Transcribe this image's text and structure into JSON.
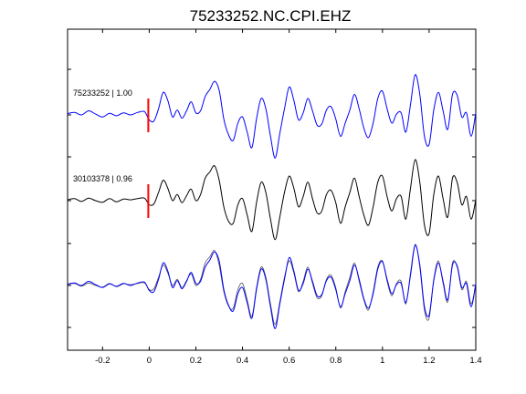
{
  "chart_data": {
    "type": "line",
    "title": "75233252.NC.CPI.EHZ",
    "xlabel": "",
    "ylabel": "",
    "xlim": [
      -0.35,
      1.4
    ],
    "xticks": [
      -0.2,
      0,
      0.2,
      0.4,
      0.6,
      0.8,
      1,
      1.2,
      1.4
    ],
    "xtick_labels": [
      "-0.2",
      "0",
      "0.2",
      "0.4",
      "0.6",
      "0.8",
      "1",
      "1.2",
      "1.4"
    ],
    "grid": false,
    "legend": "none",
    "pick_time": 0,
    "panels": [
      {
        "label": "75233252 | 1.00",
        "traces": [
          {
            "id": "75233252",
            "color": "#0000ff",
            "x": [
              -0.35,
              -0.32,
              -0.29,
              -0.26,
              -0.23,
              -0.2,
              -0.17,
              -0.14,
              -0.11,
              -0.08,
              -0.05,
              -0.02,
              0.0,
              0.02,
              0.04,
              0.06,
              0.08,
              0.1,
              0.12,
              0.14,
              0.16,
              0.18,
              0.2,
              0.22,
              0.24,
              0.26,
              0.28,
              0.3,
              0.32,
              0.34,
              0.36,
              0.38,
              0.4,
              0.42,
              0.44,
              0.46,
              0.48,
              0.5,
              0.52,
              0.54,
              0.56,
              0.58,
              0.6,
              0.62,
              0.64,
              0.66,
              0.68,
              0.7,
              0.72,
              0.74,
              0.76,
              0.78,
              0.8,
              0.82,
              0.84,
              0.86,
              0.88,
              0.9,
              0.92,
              0.94,
              0.96,
              0.98,
              1.0,
              1.02,
              1.04,
              1.06,
              1.08,
              1.1,
              1.12,
              1.14,
              1.16,
              1.18,
              1.2,
              1.22,
              1.24,
              1.26,
              1.28,
              1.3,
              1.32,
              1.34,
              1.36,
              1.38,
              1.4
            ],
            "y": [
              0.03,
              0.06,
              0.0,
              0.1,
              0.02,
              -0.05,
              0.04,
              -0.02,
              0.05,
              0.0,
              0.06,
              0.08,
              -0.12,
              -0.15,
              0.15,
              0.55,
              0.35,
              -0.05,
              0.12,
              -0.08,
              0.1,
              0.32,
              0.05,
              0.1,
              0.45,
              0.62,
              0.82,
              0.6,
              -0.1,
              -0.48,
              -0.62,
              -0.2,
              -0.05,
              -0.42,
              -0.8,
              -0.1,
              0.4,
              0.15,
              -0.52,
              -1.05,
              -0.45,
              0.15,
              0.68,
              0.35,
              -0.12,
              0.05,
              0.4,
              0.1,
              -0.25,
              -0.22,
              0.12,
              0.2,
              -0.1,
              -0.52,
              -0.2,
              0.12,
              0.5,
              0.15,
              -0.32,
              -0.55,
              -0.2,
              0.4,
              0.58,
              0.15,
              -0.2,
              0.02,
              0.05,
              -0.42,
              0.25,
              0.98,
              0.5,
              -0.52,
              -0.72,
              0.12,
              0.55,
              0.1,
              -0.35,
              0.5,
              0.48,
              -0.05,
              0.05,
              -0.52,
              0.05
            ]
          }
        ]
      },
      {
        "label": "30103378 | 0.96",
        "traces": [
          {
            "id": "30103378",
            "color": "#000000",
            "x": [
              -0.35,
              -0.32,
              -0.29,
              -0.26,
              -0.23,
              -0.2,
              -0.17,
              -0.14,
              -0.11,
              -0.08,
              -0.05,
              -0.02,
              0.0,
              0.02,
              0.04,
              0.06,
              0.08,
              0.1,
              0.12,
              0.14,
              0.16,
              0.18,
              0.2,
              0.22,
              0.24,
              0.26,
              0.28,
              0.3,
              0.32,
              0.34,
              0.36,
              0.38,
              0.4,
              0.42,
              0.44,
              0.46,
              0.48,
              0.5,
              0.52,
              0.54,
              0.56,
              0.58,
              0.6,
              0.62,
              0.64,
              0.66,
              0.68,
              0.7,
              0.72,
              0.74,
              0.76,
              0.78,
              0.8,
              0.82,
              0.84,
              0.86,
              0.88,
              0.9,
              0.92,
              0.94,
              0.96,
              0.98,
              1.0,
              1.02,
              1.04,
              1.06,
              1.08,
              1.1,
              1.12,
              1.14,
              1.16,
              1.18,
              1.2,
              1.22,
              1.24,
              1.26,
              1.28,
              1.3,
              1.32,
              1.34,
              1.36,
              1.38,
              1.4
            ],
            "y": [
              0.02,
              0.05,
              -0.02,
              0.06,
              0.0,
              -0.04,
              0.05,
              -0.03,
              0.04,
              0.02,
              0.05,
              0.06,
              -0.1,
              -0.08,
              0.2,
              0.5,
              0.3,
              0.0,
              0.15,
              -0.05,
              0.12,
              0.28,
              0.0,
              0.15,
              0.55,
              0.7,
              0.85,
              0.5,
              -0.15,
              -0.5,
              -0.55,
              -0.1,
              0.05,
              -0.35,
              -0.75,
              -0.05,
              0.45,
              0.2,
              -0.45,
              -0.95,
              -0.4,
              0.2,
              0.6,
              0.3,
              -0.15,
              0.1,
              0.45,
              0.05,
              -0.3,
              -0.25,
              0.15,
              0.25,
              -0.05,
              -0.55,
              -0.15,
              0.2,
              0.55,
              0.1,
              -0.35,
              -0.6,
              -0.15,
              0.45,
              0.6,
              0.1,
              -0.25,
              0.05,
              0.1,
              -0.45,
              0.3,
              1.0,
              0.45,
              -0.6,
              -0.8,
              0.15,
              0.6,
              0.05,
              -0.4,
              0.55,
              0.45,
              -0.1,
              0.1,
              -0.45,
              0.02
            ]
          }
        ]
      },
      {
        "label": "",
        "traces": [
          {
            "id": "75233252",
            "color": "#0000ff",
            "x": [
              -0.35,
              -0.32,
              -0.29,
              -0.26,
              -0.23,
              -0.2,
              -0.17,
              -0.14,
              -0.11,
              -0.08,
              -0.05,
              -0.02,
              0.0,
              0.02,
              0.04,
              0.06,
              0.08,
              0.1,
              0.12,
              0.14,
              0.16,
              0.18,
              0.2,
              0.22,
              0.24,
              0.26,
              0.28,
              0.3,
              0.32,
              0.34,
              0.36,
              0.38,
              0.4,
              0.42,
              0.44,
              0.46,
              0.48,
              0.5,
              0.52,
              0.54,
              0.56,
              0.58,
              0.6,
              0.62,
              0.64,
              0.66,
              0.68,
              0.7,
              0.72,
              0.74,
              0.76,
              0.78,
              0.8,
              0.82,
              0.84,
              0.86,
              0.88,
              0.9,
              0.92,
              0.94,
              0.96,
              0.98,
              1.0,
              1.02,
              1.04,
              1.06,
              1.08,
              1.1,
              1.12,
              1.14,
              1.16,
              1.18,
              1.2,
              1.22,
              1.24,
              1.26,
              1.28,
              1.3,
              1.32,
              1.34,
              1.36,
              1.38,
              1.4
            ],
            "y": [
              0.03,
              0.06,
              0.0,
              0.1,
              0.02,
              -0.05,
              0.04,
              -0.02,
              0.05,
              0.0,
              0.06,
              0.08,
              -0.12,
              -0.15,
              0.15,
              0.55,
              0.35,
              -0.05,
              0.12,
              -0.08,
              0.1,
              0.32,
              0.05,
              0.1,
              0.45,
              0.62,
              0.82,
              0.6,
              -0.1,
              -0.48,
              -0.62,
              -0.2,
              -0.05,
              -0.42,
              -0.8,
              -0.1,
              0.4,
              0.15,
              -0.52,
              -1.05,
              -0.45,
              0.15,
              0.68,
              0.35,
              -0.12,
              0.05,
              0.4,
              0.1,
              -0.25,
              -0.22,
              0.12,
              0.2,
              -0.1,
              -0.52,
              -0.2,
              0.12,
              0.5,
              0.15,
              -0.32,
              -0.55,
              -0.2,
              0.4,
              0.58,
              0.15,
              -0.2,
              0.02,
              0.05,
              -0.42,
              0.25,
              0.98,
              0.5,
              -0.52,
              -0.72,
              0.12,
              0.55,
              0.1,
              -0.35,
              0.5,
              0.48,
              -0.05,
              0.05,
              -0.52,
              0.05
            ]
          },
          {
            "id": "30103378",
            "color": "#555555",
            "x": [
              -0.35,
              -0.32,
              -0.29,
              -0.26,
              -0.23,
              -0.2,
              -0.17,
              -0.14,
              -0.11,
              -0.08,
              -0.05,
              -0.02,
              0.0,
              0.02,
              0.04,
              0.06,
              0.08,
              0.1,
              0.12,
              0.14,
              0.16,
              0.18,
              0.2,
              0.22,
              0.24,
              0.26,
              0.28,
              0.3,
              0.32,
              0.34,
              0.36,
              0.38,
              0.4,
              0.42,
              0.44,
              0.46,
              0.48,
              0.5,
              0.52,
              0.54,
              0.56,
              0.58,
              0.6,
              0.62,
              0.64,
              0.66,
              0.68,
              0.7,
              0.72,
              0.74,
              0.76,
              0.78,
              0.8,
              0.82,
              0.84,
              0.86,
              0.88,
              0.9,
              0.92,
              0.94,
              0.96,
              0.98,
              1.0,
              1.02,
              1.04,
              1.06,
              1.08,
              1.1,
              1.12,
              1.14,
              1.16,
              1.18,
              1.2,
              1.22,
              1.24,
              1.26,
              1.28,
              1.3,
              1.32,
              1.34,
              1.36,
              1.38,
              1.4
            ],
            "y": [
              0.02,
              0.05,
              -0.02,
              0.06,
              0.0,
              -0.04,
              0.05,
              -0.03,
              0.04,
              0.02,
              0.05,
              0.06,
              -0.1,
              -0.08,
              0.2,
              0.5,
              0.3,
              0.0,
              0.15,
              -0.05,
              0.12,
              0.28,
              0.0,
              0.15,
              0.55,
              0.7,
              0.85,
              0.5,
              -0.15,
              -0.5,
              -0.55,
              -0.1,
              0.05,
              -0.35,
              -0.75,
              -0.05,
              0.45,
              0.2,
              -0.45,
              -0.95,
              -0.4,
              0.2,
              0.6,
              0.3,
              -0.15,
              0.1,
              0.45,
              0.05,
              -0.3,
              -0.25,
              0.15,
              0.25,
              -0.05,
              -0.55,
              -0.15,
              0.2,
              0.55,
              0.1,
              -0.35,
              -0.6,
              -0.15,
              0.45,
              0.6,
              0.1,
              -0.25,
              0.05,
              0.1,
              -0.45,
              0.3,
              1.0,
              0.45,
              -0.6,
              -0.8,
              0.15,
              0.6,
              0.05,
              -0.4,
              0.55,
              0.45,
              -0.1,
              0.1,
              -0.45,
              0.02
            ]
          }
        ]
      }
    ]
  },
  "colors": {
    "pick_marker": "#ff0000",
    "axes": "#000000",
    "background": "#ffffff"
  }
}
